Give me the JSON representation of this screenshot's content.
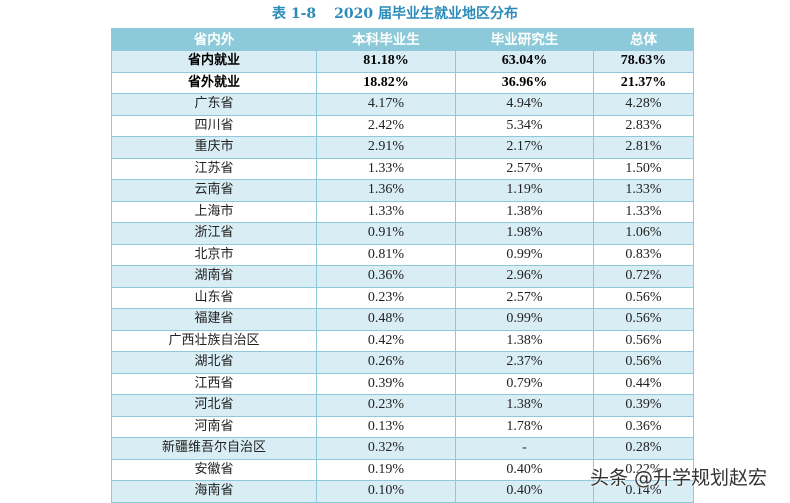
{
  "title": {
    "label": "表 1-8",
    "text": "2020 届毕业生就业地区分布"
  },
  "table": {
    "headers": [
      "省内外",
      "本科毕业生",
      "毕业研究生",
      "总体"
    ],
    "rows": [
      {
        "name": "省内就业",
        "undergrad": "81.18%",
        "graduate": "63.04%",
        "total": "78.63%",
        "bold": true
      },
      {
        "name": "省外就业",
        "undergrad": "18.82%",
        "graduate": "36.96%",
        "total": "21.37%",
        "bold": true
      },
      {
        "name": "广东省",
        "undergrad": "4.17%",
        "graduate": "4.94%",
        "total": "4.28%"
      },
      {
        "name": "四川省",
        "undergrad": "2.42%",
        "graduate": "5.34%",
        "total": "2.83%"
      },
      {
        "name": "重庆市",
        "undergrad": "2.91%",
        "graduate": "2.17%",
        "total": "2.81%"
      },
      {
        "name": "江苏省",
        "undergrad": "1.33%",
        "graduate": "2.57%",
        "total": "1.50%"
      },
      {
        "name": "云南省",
        "undergrad": "1.36%",
        "graduate": "1.19%",
        "total": "1.33%"
      },
      {
        "name": "上海市",
        "undergrad": "1.33%",
        "graduate": "1.38%",
        "total": "1.33%"
      },
      {
        "name": "浙江省",
        "undergrad": "0.91%",
        "graduate": "1.98%",
        "total": "1.06%"
      },
      {
        "name": "北京市",
        "undergrad": "0.81%",
        "graduate": "0.99%",
        "total": "0.83%"
      },
      {
        "name": "湖南省",
        "undergrad": "0.36%",
        "graduate": "2.96%",
        "total": "0.72%"
      },
      {
        "name": "山东省",
        "undergrad": "0.23%",
        "graduate": "2.57%",
        "total": "0.56%"
      },
      {
        "name": "福建省",
        "undergrad": "0.48%",
        "graduate": "0.99%",
        "total": "0.56%"
      },
      {
        "name": "广西壮族自治区",
        "undergrad": "0.42%",
        "graduate": "1.38%",
        "total": "0.56%"
      },
      {
        "name": "湖北省",
        "undergrad": "0.26%",
        "graduate": "2.37%",
        "total": "0.56%"
      },
      {
        "name": "江西省",
        "undergrad": "0.39%",
        "graduate": "0.79%",
        "total": "0.44%"
      },
      {
        "name": "河北省",
        "undergrad": "0.23%",
        "graduate": "1.38%",
        "total": "0.39%"
      },
      {
        "name": "河南省",
        "undergrad": "0.13%",
        "graduate": "1.78%",
        "total": "0.36%"
      },
      {
        "name": "新疆维吾尔自治区",
        "undergrad": "0.32%",
        "graduate": "-",
        "total": "0.28%"
      },
      {
        "name": "安徽省",
        "undergrad": "0.19%",
        "graduate": "0.40%",
        "total": "0.22%"
      },
      {
        "name": "海南省",
        "undergrad": "0.10%",
        "graduate": "0.40%",
        "total": "0.14%"
      }
    ]
  },
  "watermark": "头条 @升学规划赵宏",
  "colors": {
    "title": "#2a8ab8",
    "header_bg": "#8ccad9",
    "stripe_bg": "#d9edf4",
    "border": "#8ec8da"
  }
}
